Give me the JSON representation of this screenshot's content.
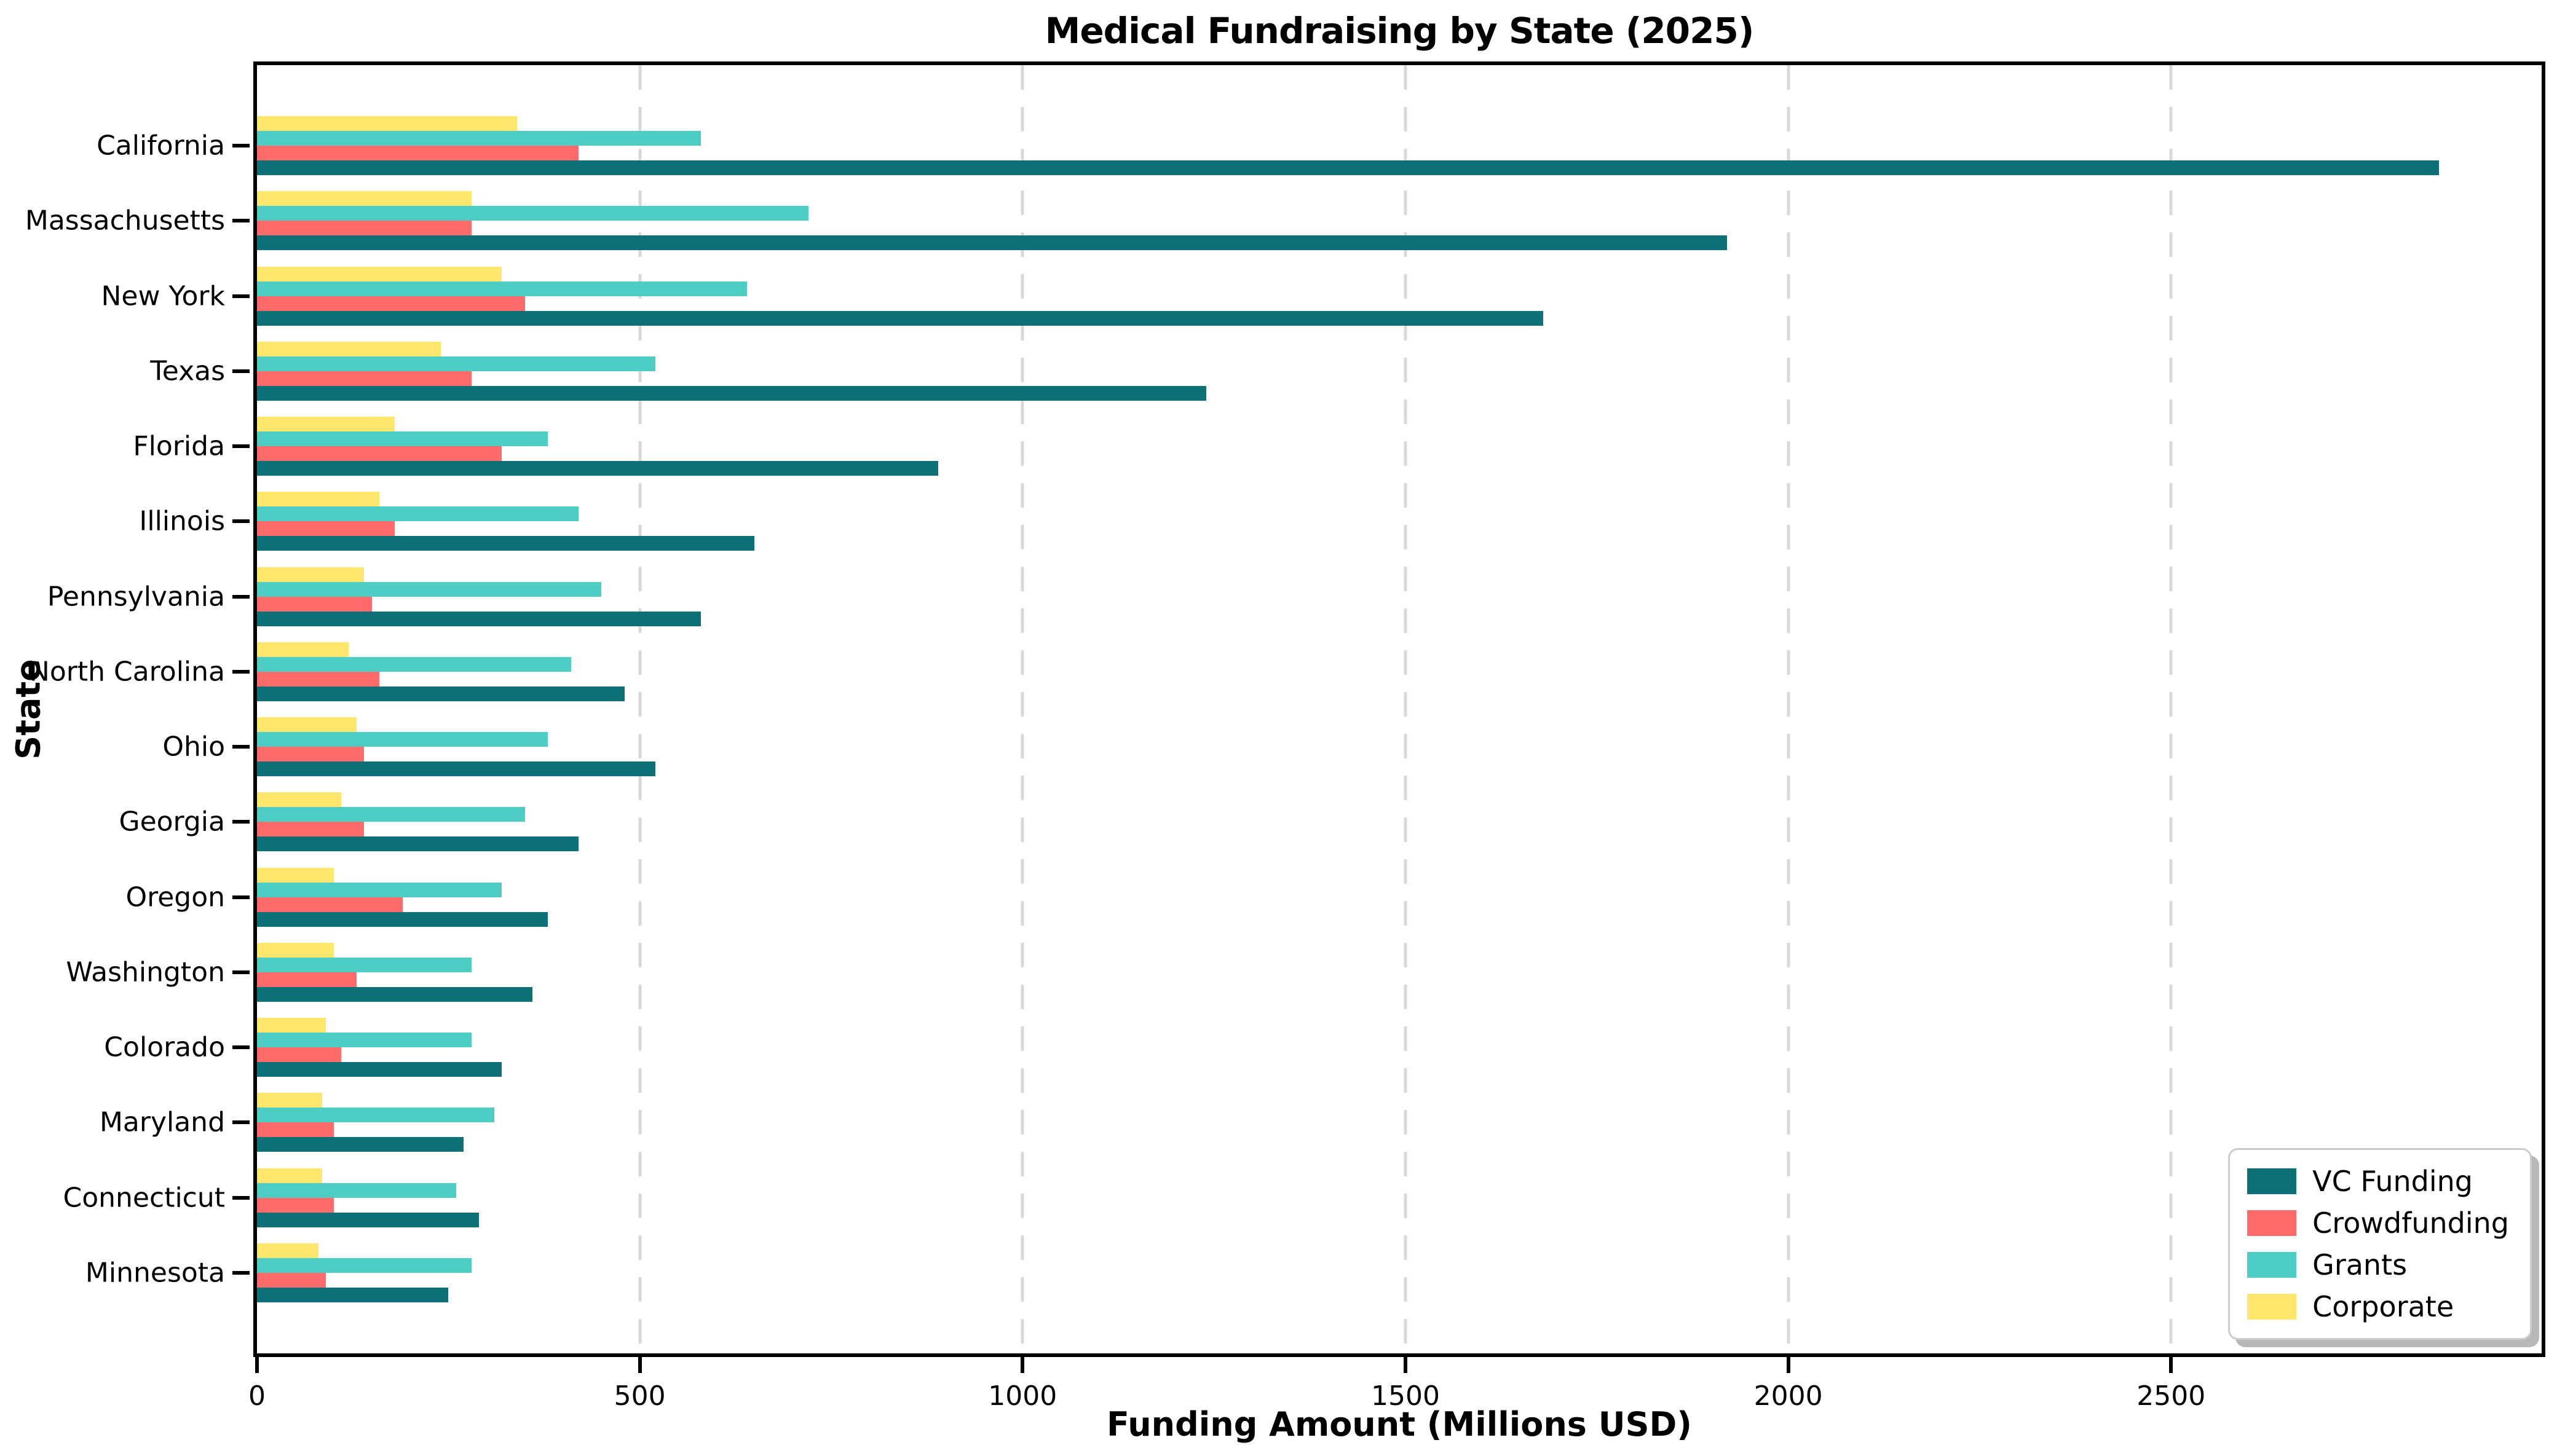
{
  "title": "Medical Fundraising by State (2025)",
  "x_axis": {
    "label": "Funding Amount (Millions USD)",
    "ticks": [
      0,
      500,
      1000,
      1500,
      2000,
      2500
    ]
  },
  "y_axis": {
    "label": "State"
  },
  "colors": {
    "vc_funding": "#0d7076",
    "crowdfunding": "#ff6b6b",
    "grants": "#4ecdc4",
    "corporate": "#ffe66d",
    "gridline": "#d9d9d9",
    "legend_border": "#cccccc",
    "legend_shadow": "#b8b8b8",
    "text": "#000000"
  },
  "chart_data": {
    "type": "bar",
    "orientation": "horizontal",
    "title": "Medical Fundraising by State (2025)",
    "xlabel": "Funding Amount (Millions USD)",
    "ylabel": "State",
    "xlim": [
      0,
      2984
    ],
    "grid": "vertical dashed gridlines at x ticks",
    "legend_position": "lower right",
    "bar_order_top_to_bottom_within_group": [
      "Corporate",
      "Grants",
      "Crowdfunding",
      "VC Funding"
    ],
    "categories": [
      "California",
      "Massachusetts",
      "New York",
      "Texas",
      "Florida",
      "Illinois",
      "Pennsylvania",
      "North Carolina",
      "Ohio",
      "Georgia",
      "Oregon",
      "Washington",
      "Colorado",
      "Maryland",
      "Connecticut",
      "Minnesota"
    ],
    "series": [
      {
        "name": "VC Funding",
        "color": "#0d7076",
        "values": [
          2850,
          1920,
          1680,
          1240,
          890,
          650,
          580,
          480,
          520,
          420,
          380,
          360,
          320,
          270,
          290,
          250
        ]
      },
      {
        "name": "Crowdfunding",
        "color": "#ff6b6b",
        "values": [
          420,
          280,
          350,
          280,
          320,
          180,
          150,
          160,
          140,
          140,
          190,
          130,
          110,
          100,
          100,
          90
        ]
      },
      {
        "name": "Grants",
        "color": "#4ecdc4",
        "values": [
          580,
          720,
          640,
          520,
          380,
          420,
          450,
          410,
          380,
          350,
          320,
          280,
          280,
          310,
          260,
          280
        ]
      },
      {
        "name": "Corporate",
        "color": "#ffe66d",
        "values": [
          340,
          280,
          320,
          240,
          180,
          160,
          140,
          120,
          130,
          110,
          100,
          100,
          90,
          85,
          85,
          80
        ]
      }
    ]
  }
}
